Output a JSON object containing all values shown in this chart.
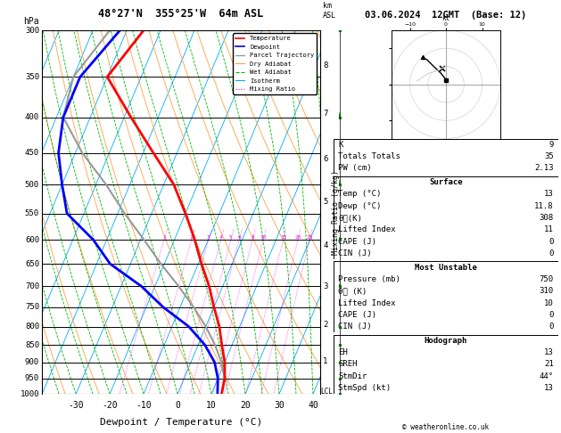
{
  "title_left": "48°27'N  355°25'W  64m ASL",
  "title_right": "03.06.2024  12GMT  (Base: 12)",
  "xlabel": "Dewpoint / Temperature (°C)",
  "ylabel_left": "hPa",
  "pressure_levels": [
    300,
    350,
    400,
    450,
    500,
    550,
    600,
    650,
    700,
    750,
    800,
    850,
    900,
    950,
    1000
  ],
  "temp_ticks": [
    -30,
    -20,
    -10,
    0,
    10,
    20,
    30,
    40
  ],
  "T_min": -40,
  "T_max": 42,
  "P_min": 300,
  "P_max": 1000,
  "skew_deg": 45,
  "isotherm_color": "#00aaff",
  "dry_adiabat_color": "#ffa040",
  "wet_adiabat_color": "#00bb00",
  "mixing_ratio_color": "#ff00ff",
  "temp_color": "#ff0000",
  "dewp_color": "#0000ff",
  "parcel_color": "#999999",
  "background_color": "#ffffff",
  "temperature_profile_p": [
    1000,
    950,
    900,
    850,
    800,
    750,
    700,
    650,
    600,
    550,
    500,
    450,
    400,
    350,
    300
  ],
  "temperature_profile_T": [
    13,
    12,
    10,
    7,
    4,
    0,
    -4,
    -9,
    -14,
    -20,
    -27,
    -37,
    -48,
    -60,
    -55
  ],
  "temperature_profile_Td": [
    11.8,
    10,
    7,
    2,
    -5,
    -15,
    -24,
    -36,
    -44,
    -55,
    -60,
    -65,
    -68,
    -68,
    -62
  ],
  "parcel_profile_T": [
    13,
    12,
    9,
    5,
    0,
    -6,
    -13,
    -21,
    -29,
    -38,
    -47,
    -58,
    -68,
    -70,
    -65
  ],
  "mixing_ratio_ws": [
    1,
    2,
    3,
    4,
    5,
    6,
    8,
    10,
    15,
    20,
    25
  ],
  "km_ticks": [
    1,
    2,
    3,
    4,
    5,
    6,
    7,
    8
  ],
  "km_pressures": [
    898,
    795,
    700,
    612,
    530,
    460,
    395,
    337
  ],
  "hodograph_u": [
    0.1,
    -1.5,
    -3.5,
    -5.2,
    -6.5
  ],
  "hodograph_v": [
    1.2,
    3.2,
    5.1,
    6.8,
    7.5
  ],
  "hodo_storm_u": [
    -1.0
  ],
  "hodo_storm_v": [
    4.5
  ],
  "wind_barb_pressures": [
    300,
    400,
    500,
    600,
    700,
    800,
    850,
    900,
    950,
    1000
  ],
  "wind_barb_speeds": [
    25,
    18,
    12,
    8,
    6,
    4,
    3,
    3,
    2,
    2
  ],
  "wind_barb_dirs": [
    270,
    260,
    250,
    230,
    210,
    195,
    185,
    180,
    175,
    170
  ],
  "lcl_label": "LCL",
  "lcl_pressure": 993,
  "sounding_info": {
    "K": "9",
    "Totals_Totals": "35",
    "PW_cm": "2.13",
    "Surface_Temp": "13",
    "Surface_Dewp": "11.8",
    "theta_e_K": "308",
    "Lifted_Index": "11",
    "CAPE_J": "0",
    "CIN_J": "0",
    "MU_Pressure_mb": "750",
    "MU_theta_e_K": "310",
    "MU_Lifted_Index": "10",
    "MU_CAPE_J": "0",
    "MU_CIN_J": "0",
    "Hodo_EH": "13",
    "Hodo_SREH": "21",
    "StmDir": "44°",
    "StmSpd_kt": "13"
  }
}
